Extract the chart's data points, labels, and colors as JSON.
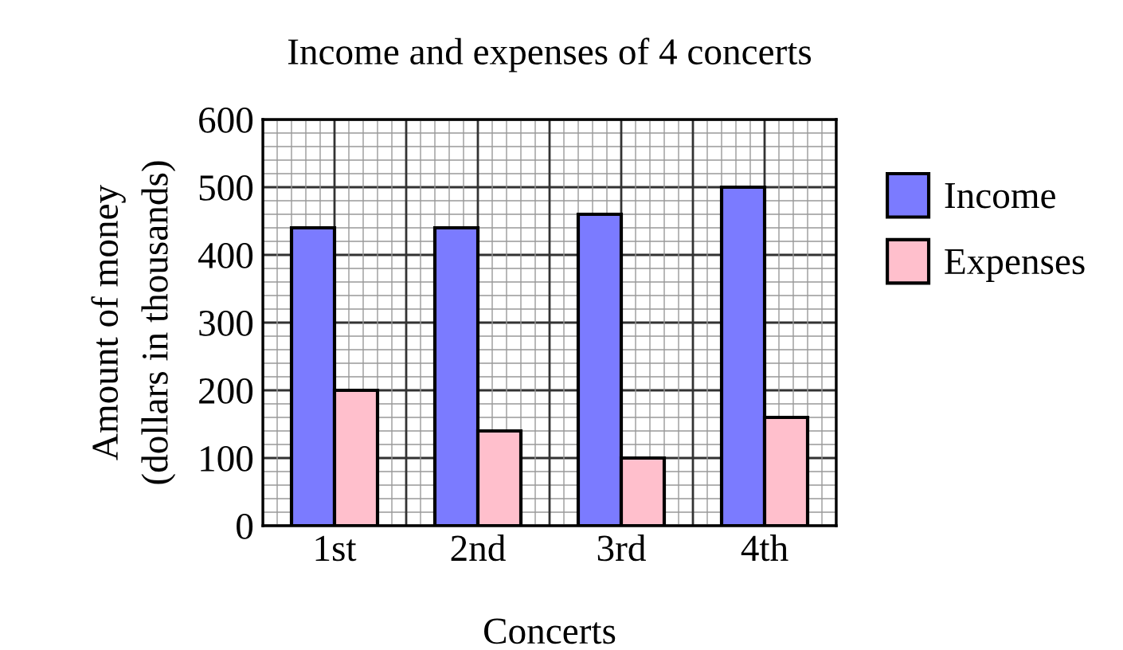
{
  "chart_data": {
    "type": "bar",
    "title": "Income and expenses of 4 concerts",
    "xlabel": "Concerts",
    "ylabel": "Amount of money\n(dollars in thousands)",
    "categories": [
      "1st",
      "2nd",
      "3rd",
      "4th"
    ],
    "series": [
      {
        "name": "Income",
        "color": "#7b7bff",
        "values": [
          440,
          440,
          460,
          500
        ]
      },
      {
        "name": "Expenses",
        "color": "#ffbfcc",
        "values": [
          200,
          140,
          100,
          160
        ]
      }
    ],
    "ylim": [
      0,
      600
    ],
    "yticks": [
      0,
      100,
      200,
      300,
      400,
      500,
      600
    ],
    "grid": true,
    "legend": "right"
  }
}
